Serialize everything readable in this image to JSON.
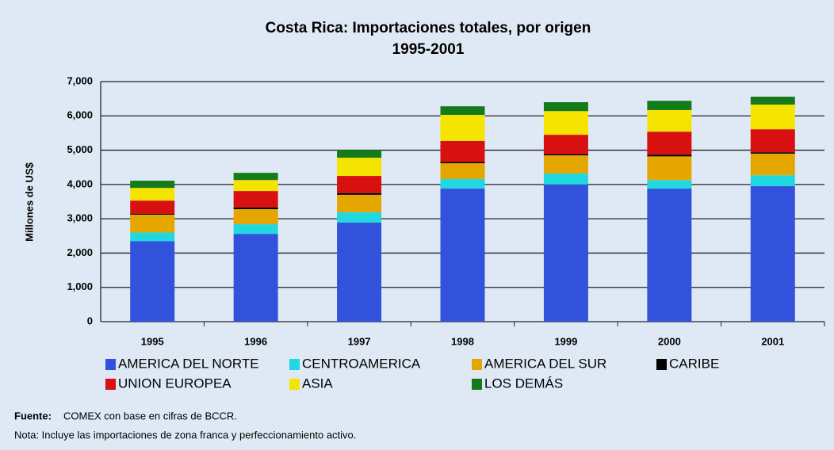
{
  "chart_data": {
    "type": "stacked-bar",
    "title": "Costa Rica: Importaciones totales, por origen",
    "subtitle": "1995-2001",
    "y_label": "Millones de US$",
    "categories": [
      "1995",
      "1996",
      "1997",
      "1998",
      "1999",
      "2000",
      "2001"
    ],
    "series": [
      {
        "name": "AMERICA DEL NORTE",
        "color": "#3352dc",
        "values": [
          2350,
          2560,
          2890,
          3880,
          4000,
          3880,
          3950
        ]
      },
      {
        "name": "CENTROAMERICA",
        "color": "#22d8e0",
        "values": [
          250,
          280,
          300,
          280,
          320,
          250,
          320
        ]
      },
      {
        "name": "AMERICA DEL SUR",
        "color": "#e6a600",
        "values": [
          520,
          440,
          510,
          460,
          530,
          690,
          630
        ]
      },
      {
        "name": "CARIBE",
        "color": "#000000",
        "values": [
          30,
          50,
          50,
          40,
          40,
          50,
          40
        ]
      },
      {
        "name": "UNION EUROPEA",
        "color": "#d81010",
        "values": [
          380,
          480,
          500,
          610,
          560,
          670,
          670
        ]
      },
      {
        "name": "ASIA",
        "color": "#f5e400",
        "values": [
          370,
          320,
          530,
          760,
          690,
          630,
          720
        ]
      },
      {
        "name": "LOS DEMÁS",
        "color": "#147a1a",
        "values": [
          210,
          210,
          230,
          250,
          260,
          270,
          230
        ]
      }
    ],
    "ylim": [
      0,
      7000
    ],
    "yticks": [
      0,
      {
        "value": 1000,
        "label": "1,000"
      },
      {
        "value": 2000,
        "label": "2,000"
      },
      {
        "value": 3000,
        "label": "3,000"
      },
      {
        "value": 4000,
        "label": "4,000"
      },
      {
        "value": 5000,
        "label": "5,000"
      },
      {
        "value": 6000,
        "label": "6,000"
      },
      {
        "value": 7000,
        "label": "7,000"
      }
    ],
    "grid": true,
    "legend": "bottom",
    "source_label": "Fuente:",
    "source": "COMEX con base en cifras de BCCR.",
    "note": "Nota: Incluye las importaciones de zona franca y perfeccionamiento activo."
  }
}
